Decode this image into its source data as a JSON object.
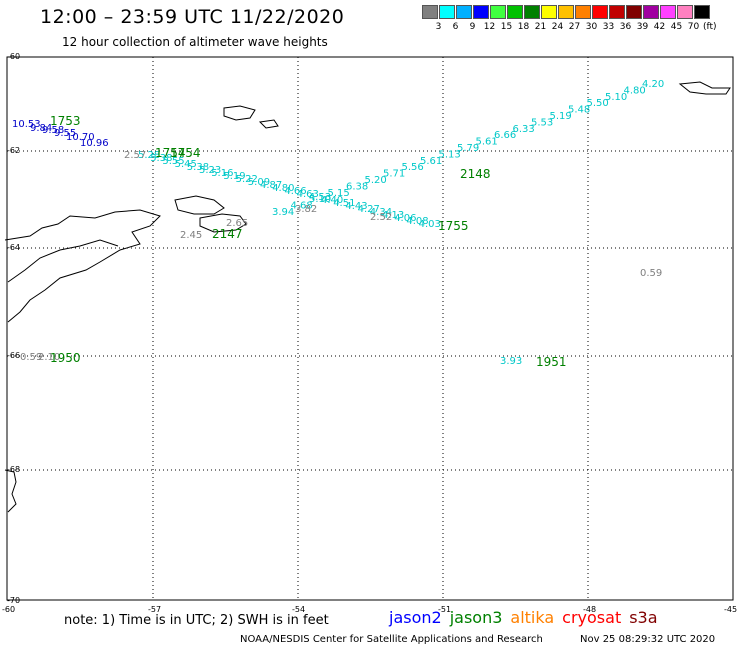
{
  "header": {
    "title": "12:00 – 23:59 UTC 11/22/2020",
    "subtitle": "12 hour collection of altimeter wave heights"
  },
  "colorbar": {
    "colors": [
      "#808080",
      "#00ffff",
      "#00b0ff",
      "#0000ff",
      "#40ff40",
      "#00c000",
      "#008000",
      "#ffff00",
      "#ffc000",
      "#ff8000",
      "#ff0000",
      "#c00000",
      "#800000",
      "#a000a0",
      "#ff40ff",
      "#ff80c0",
      "#000000"
    ],
    "labels": [
      "3",
      "6",
      "9",
      "12",
      "15",
      "18",
      "21",
      "24",
      "27",
      "30",
      "33",
      "36",
      "39",
      "42",
      "45",
      "70"
    ],
    "unit": "(ft)"
  },
  "axes": {
    "lat_labels": [
      "-60",
      "-62",
      "-64",
      "-66",
      "-68",
      "-70"
    ],
    "lon_labels": [
      "-60",
      "-57",
      "-54",
      "-51",
      "-48",
      "-45"
    ]
  },
  "tracks": {
    "jason2_values": [
      "10.53",
      "9.84",
      "9.58",
      "9.55",
      "10.70",
      "10.96"
    ],
    "jason2_time": "1753",
    "cyan_values_a": [
      "5.28",
      "5.38",
      "5.55",
      "5.45",
      "5.38",
      "5.23",
      "5.16",
      "5.19",
      "5.22",
      "5.09",
      "4.87",
      "4.80",
      "4.66",
      "4.63",
      "4.53",
      "4.40",
      "4.51",
      "4.43",
      "4.27",
      "4.34",
      "4.13",
      "4.06",
      "4.08",
      "4.03"
    ],
    "cyan_time_a": "1754",
    "cyan_values_b": [
      "3.94",
      "4.68",
      "5.10",
      "5.15",
      "6.38",
      "5.20",
      "5.71",
      "5.56",
      "5.61",
      "5.13",
      "5.79",
      "5.61",
      "6.66",
      "6.33",
      "5.53",
      "5.19",
      "5.48",
      "5.50",
      "5.10",
      "4.80",
      "4.20"
    ],
    "cyan_time_b": "2148",
    "gray_values": [
      "2.57",
      "2.45",
      "2.65",
      "3.82",
      "2.52",
      "0.59",
      "0.59",
      "2.10"
    ],
    "green_times": [
      "1754",
      "2147",
      "1755",
      "1950",
      "1951"
    ],
    "cyan_single": "3.93"
  },
  "footer": {
    "note": "note: 1) Time is in UTC; 2) SWH is in feet",
    "satellites": [
      {
        "name": "jason2",
        "color": "#0000ff"
      },
      {
        "name": "jason3",
        "color": "#008000"
      },
      {
        "name": "altika",
        "color": "#ff8000"
      },
      {
        "name": "cryosat",
        "color": "#ff0000"
      },
      {
        "name": "s3a",
        "color": "#800000"
      }
    ],
    "credit": "NOAA/NESDIS Center for Satellite Applications and Research",
    "generated": "Nov 25 08:29:32 UTC 2020"
  }
}
